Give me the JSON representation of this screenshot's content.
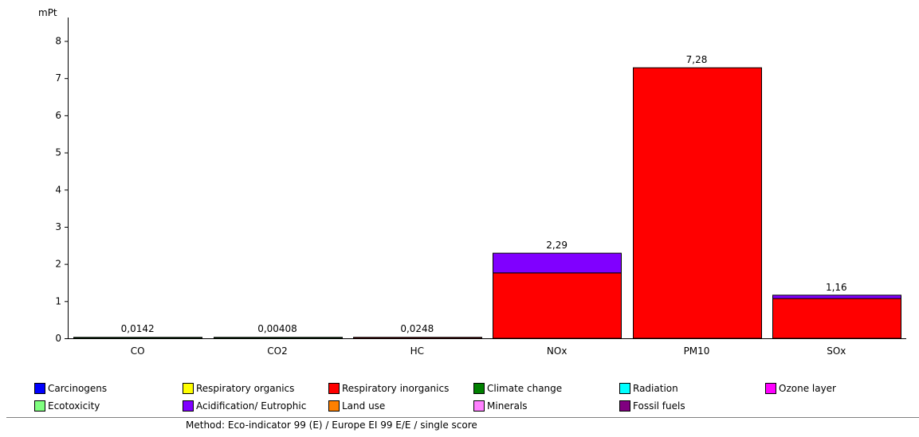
{
  "chart_data": {
    "type": "bar",
    "stacked": true,
    "ylabel": "mPt",
    "ylim": [
      0,
      8
    ],
    "yticks": [
      "0",
      "1",
      "2",
      "3",
      "4",
      "5",
      "6",
      "7",
      "8"
    ],
    "categories": [
      "CO",
      "CO2",
      "HC",
      "NOx",
      "PM10",
      "SOx"
    ],
    "totals": [
      "0,0142",
      "0,00408",
      "0,0248",
      "2,29",
      "7,28",
      "1,16"
    ],
    "series": [
      {
        "name": "Respiratory inorganics",
        "color": "#ff0000",
        "values": [
          0.0,
          0.0,
          0.025,
          1.76,
          7.28,
          1.07
        ]
      },
      {
        "name": "Acidification/ Eutrophic",
        "color": "#8000ff",
        "values": [
          0.0,
          0.0,
          0.0,
          0.53,
          0.0,
          0.09
        ]
      },
      {
        "name": "Climate change",
        "color": "#008000",
        "values": [
          0.0142,
          0.00408,
          0.0,
          0.0,
          0.0,
          0.0
        ]
      }
    ],
    "legend_placement": "bottom",
    "grid": false
  },
  "legend": [
    {
      "label": "Carcinogens",
      "color": "#0000ff"
    },
    {
      "label": "Respiratory organics",
      "color": "#ffff00"
    },
    {
      "label": "Respiratory inorganics",
      "color": "#ff0000"
    },
    {
      "label": "Climate change",
      "color": "#008000"
    },
    {
      "label": "Radiation",
      "color": "#00ffff"
    },
    {
      "label": "Ozone layer",
      "color": "#ff00ff"
    },
    {
      "label": "Ecotoxicity",
      "color": "#80ff80"
    },
    {
      "label": "Acidification/ Eutrophic",
      "color": "#8000ff"
    },
    {
      "label": "Land use",
      "color": "#ff8000"
    },
    {
      "label": "Minerals",
      "color": "#ff80ff"
    },
    {
      "label": "Fossil fuels",
      "color": "#800080"
    }
  ],
  "method_text": "Method: Eco-indicator 99 (E) / Europe EI 99 E/E / single score"
}
